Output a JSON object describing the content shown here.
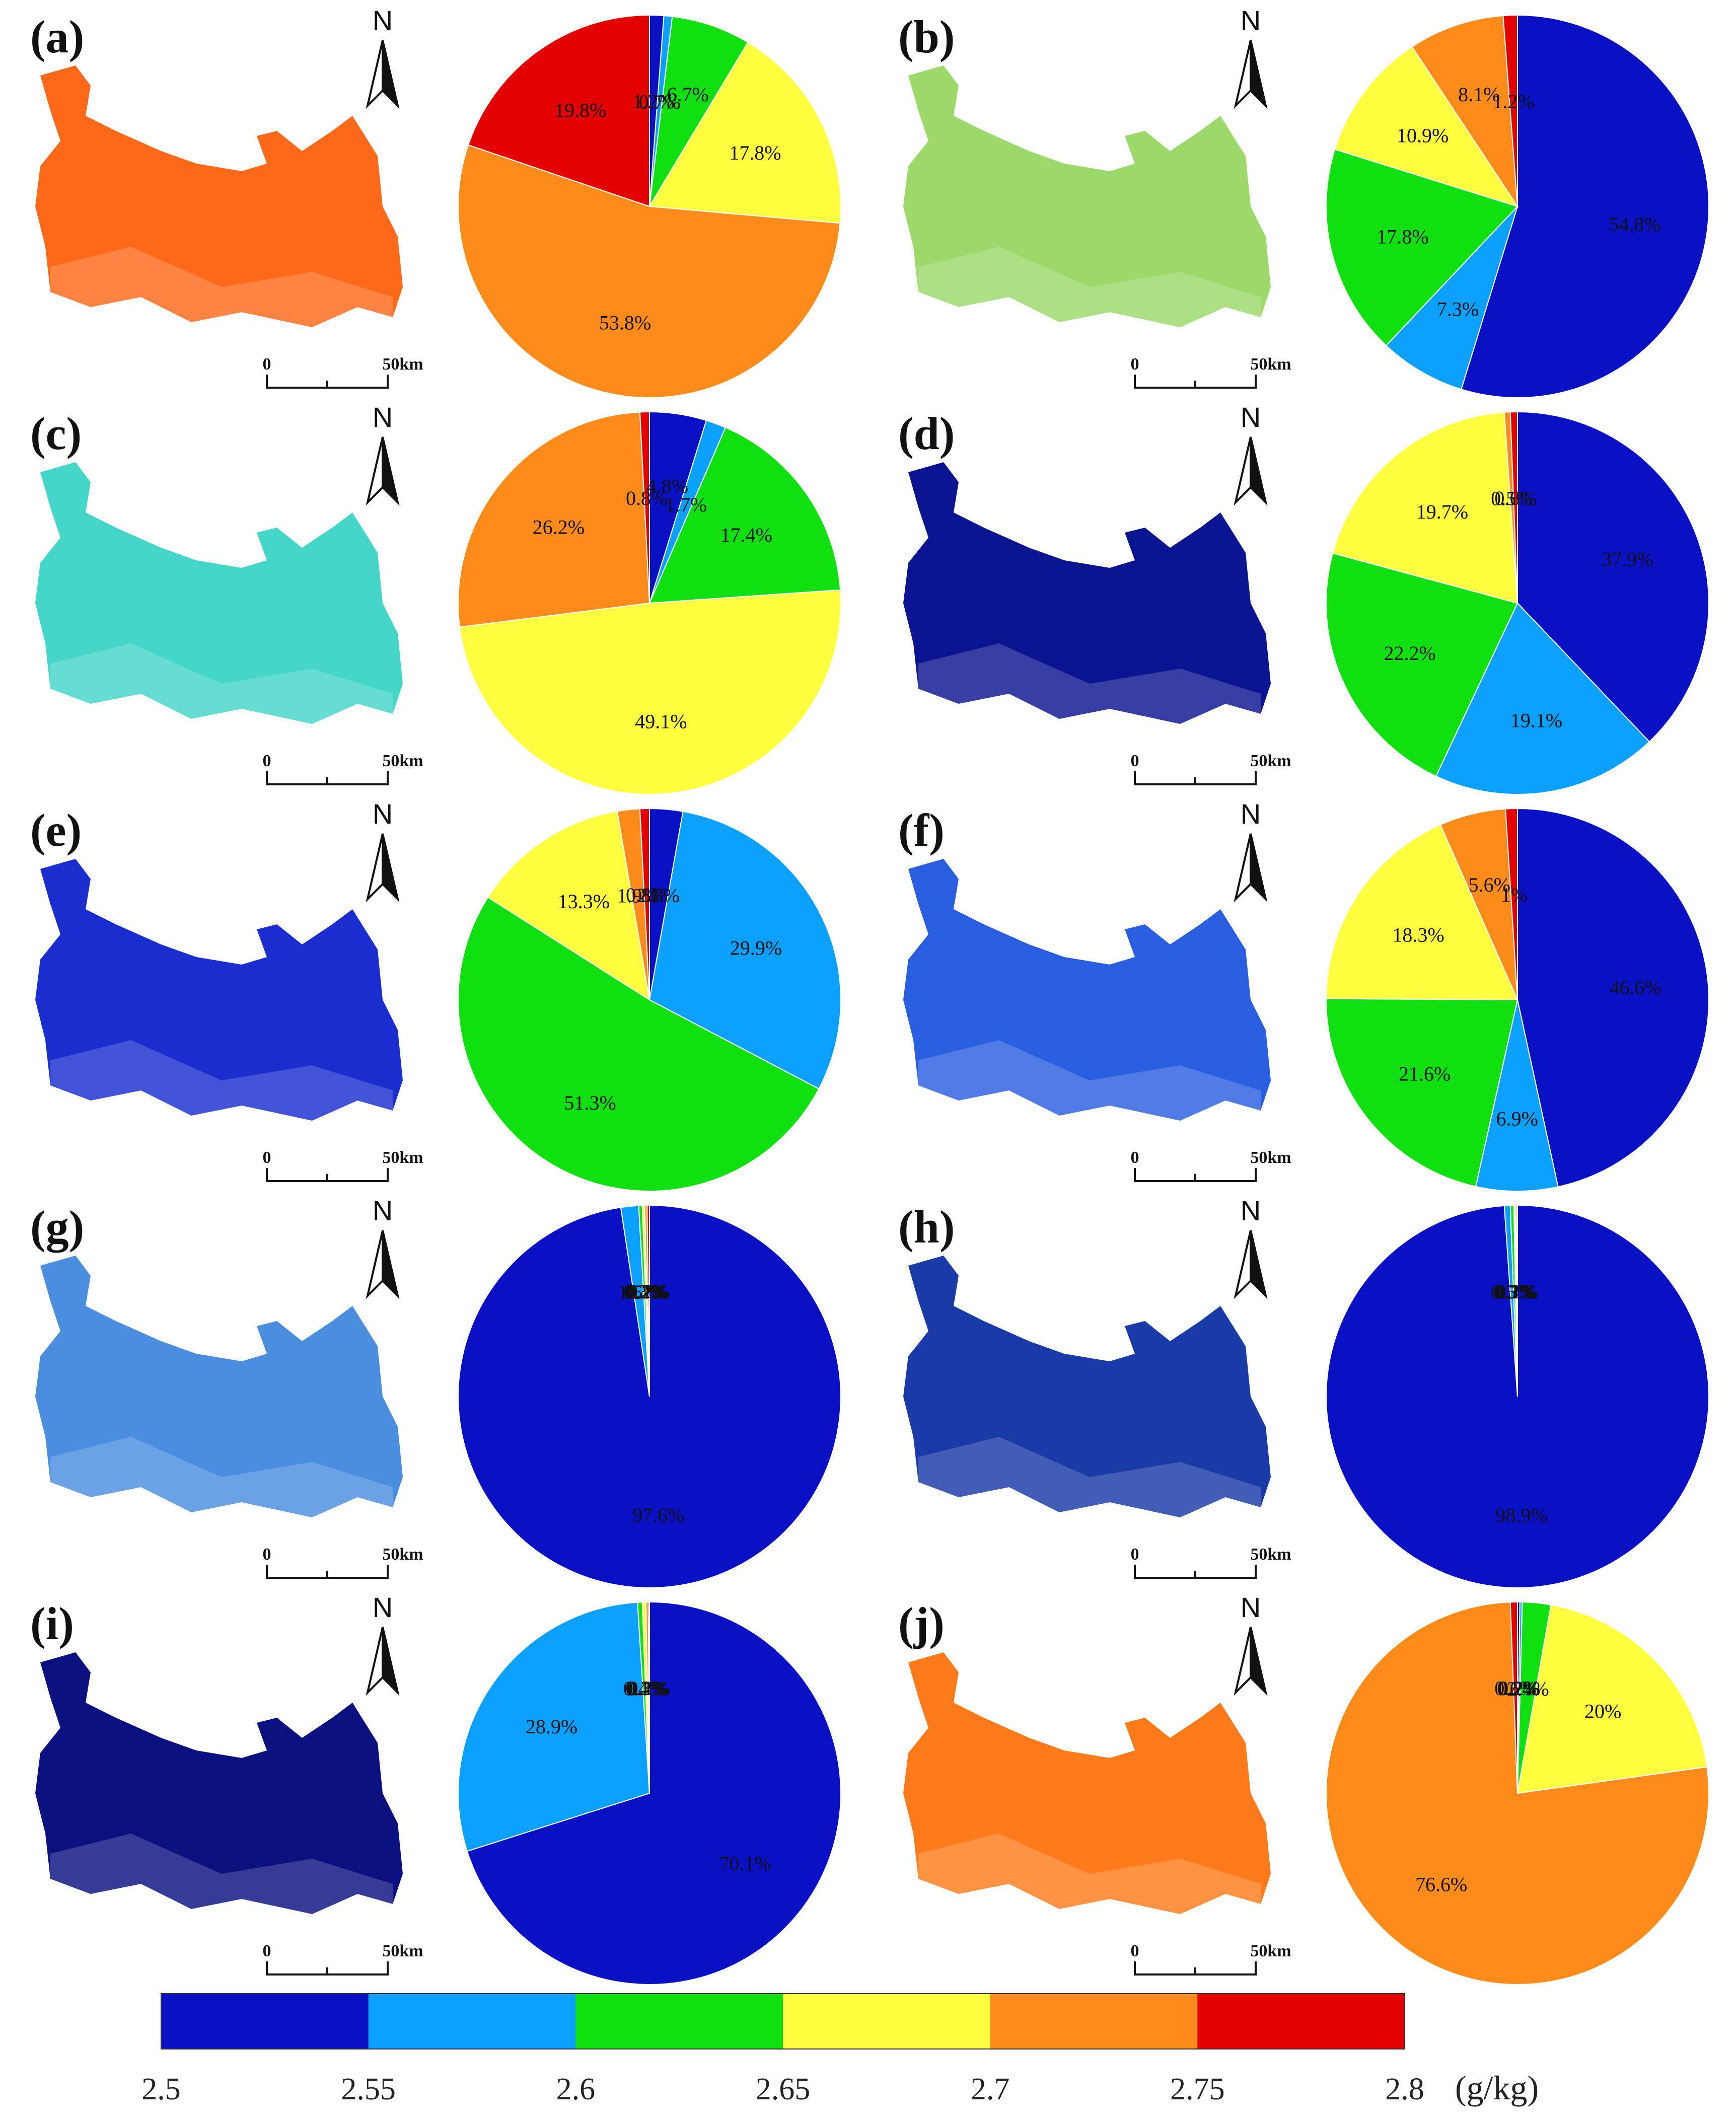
{
  "colors": [
    "#0a10c4",
    "#0aa0ff",
    "#10e010",
    "#ffff40",
    "#ff8c1a",
    "#e30000"
  ],
  "scale_label": "50km",
  "scale_zero": "0",
  "north_label": "N",
  "chart_data": {
    "type": "pie",
    "panels": [
      {
        "label": "(a)",
        "map_color": "#ff6a1a",
        "slices": [
          {
            "value": 1.2,
            "label": "1.2%"
          },
          {
            "value": 0.7,
            "label": "0.7%"
          },
          {
            "value": 6.7,
            "label": "6.7%"
          },
          {
            "value": 17.8,
            "label": "17.8%"
          },
          {
            "value": 53.8,
            "label": "53.8%"
          },
          {
            "value": 19.8,
            "label": "19.8%"
          }
        ]
      },
      {
        "label": "(b)",
        "map_color": "#9cd86a",
        "slices": [
          {
            "value": 54.8,
            "label": "54.8%"
          },
          {
            "value": 7.3,
            "label": "7.3%"
          },
          {
            "value": 17.8,
            "label": "17.8%"
          },
          {
            "value": 10.9,
            "label": "10.9%"
          },
          {
            "value": 8.1,
            "label": "8.1%"
          },
          {
            "value": 1.2,
            "label": "1.2%"
          }
        ]
      },
      {
        "label": "(c)",
        "map_color": "#44d6c8",
        "slices": [
          {
            "value": 4.8,
            "label": "4.8%"
          },
          {
            "value": 1.7,
            "label": "1.7%"
          },
          {
            "value": 17.4,
            "label": "17.4%"
          },
          {
            "value": 49.1,
            "label": "49.1%"
          },
          {
            "value": 26.2,
            "label": "26.2%"
          },
          {
            "value": 0.8,
            "label": "0.8%"
          }
        ]
      },
      {
        "label": "(d)",
        "map_color": "#0a1490",
        "slices": [
          {
            "value": 37.9,
            "label": "37.9%"
          },
          {
            "value": 19.1,
            "label": "19.1%"
          },
          {
            "value": 22.2,
            "label": "22.2%"
          },
          {
            "value": 19.7,
            "label": "19.7%"
          },
          {
            "value": 0.5,
            "label": "0.5%"
          },
          {
            "value": 0.6,
            "label": "0.6%"
          }
        ]
      },
      {
        "label": "(e)",
        "map_color": "#1a2ed0",
        "slices": [
          {
            "value": 2.8,
            "label": "2.8%"
          },
          {
            "value": 29.9,
            "label": "29.9%"
          },
          {
            "value": 51.3,
            "label": "51.3%"
          },
          {
            "value": 13.3,
            "label": "13.3%"
          },
          {
            "value": 1.9,
            "label": "1.9%"
          },
          {
            "value": 0.8,
            "label": "0.8%"
          }
        ]
      },
      {
        "label": "(f)",
        "map_color": "#2a5ee0",
        "slices": [
          {
            "value": 46.6,
            "label": "46.6%"
          },
          {
            "value": 6.9,
            "label": "6.9%"
          },
          {
            "value": 21.6,
            "label": "21.6%"
          },
          {
            "value": 18.3,
            "label": "18.3%"
          },
          {
            "value": 5.6,
            "label": "5.6%"
          },
          {
            "value": 1.0,
            "label": "1%"
          }
        ]
      },
      {
        "label": "(g)",
        "map_color": "#4a8ee0",
        "slices": [
          {
            "value": 97.6,
            "label": "97.6%"
          },
          {
            "value": 1.5,
            "label": "1.5%"
          },
          {
            "value": 0.3,
            "label": "0.3%"
          },
          {
            "value": 0.2,
            "label": "0.2%"
          },
          {
            "value": 0.2,
            "label": "0.2%"
          },
          {
            "value": 0.2,
            "label": "0.2%"
          }
        ]
      },
      {
        "label": "(h)",
        "map_color": "#1a3aa8",
        "slices": [
          {
            "value": 98.9,
            "label": "98.9%"
          },
          {
            "value": 0.5,
            "label": "0.5%"
          },
          {
            "value": 0.3,
            "label": "0.3%"
          },
          {
            "value": 0.1,
            "label": "0.1%"
          },
          {
            "value": 0.1,
            "label": "0.1%"
          },
          {
            "value": 0.1,
            "label": "0.1%"
          }
        ]
      },
      {
        "label": "(i)",
        "map_color": "#0a1080",
        "slices": [
          {
            "value": 70.1,
            "label": "70.1%"
          },
          {
            "value": 28.9,
            "label": "28.9%"
          },
          {
            "value": 0.4,
            "label": "0.4%"
          },
          {
            "value": 0.3,
            "label": "0.3%"
          },
          {
            "value": 0.2,
            "label": "0.2%"
          },
          {
            "value": 0.1,
            "label": "0.1%"
          }
        ]
      },
      {
        "label": "(j)",
        "map_color": "#ff7a1a",
        "slices": [
          {
            "value": 0.2,
            "label": "0.2%"
          },
          {
            "value": 0.2,
            "label": "0.2%"
          },
          {
            "value": 2.4,
            "label": "2.4%"
          },
          {
            "value": 20.0,
            "label": "20%"
          },
          {
            "value": 76.6,
            "label": "76.6%"
          },
          {
            "value": 0.6,
            "label": "0.6%"
          }
        ]
      }
    ],
    "legend": {
      "ticks": [
        "2.5",
        "2.55",
        "2.6",
        "2.65",
        "2.7",
        "2.75",
        "2.8"
      ],
      "unit": "(g/kg)"
    }
  }
}
